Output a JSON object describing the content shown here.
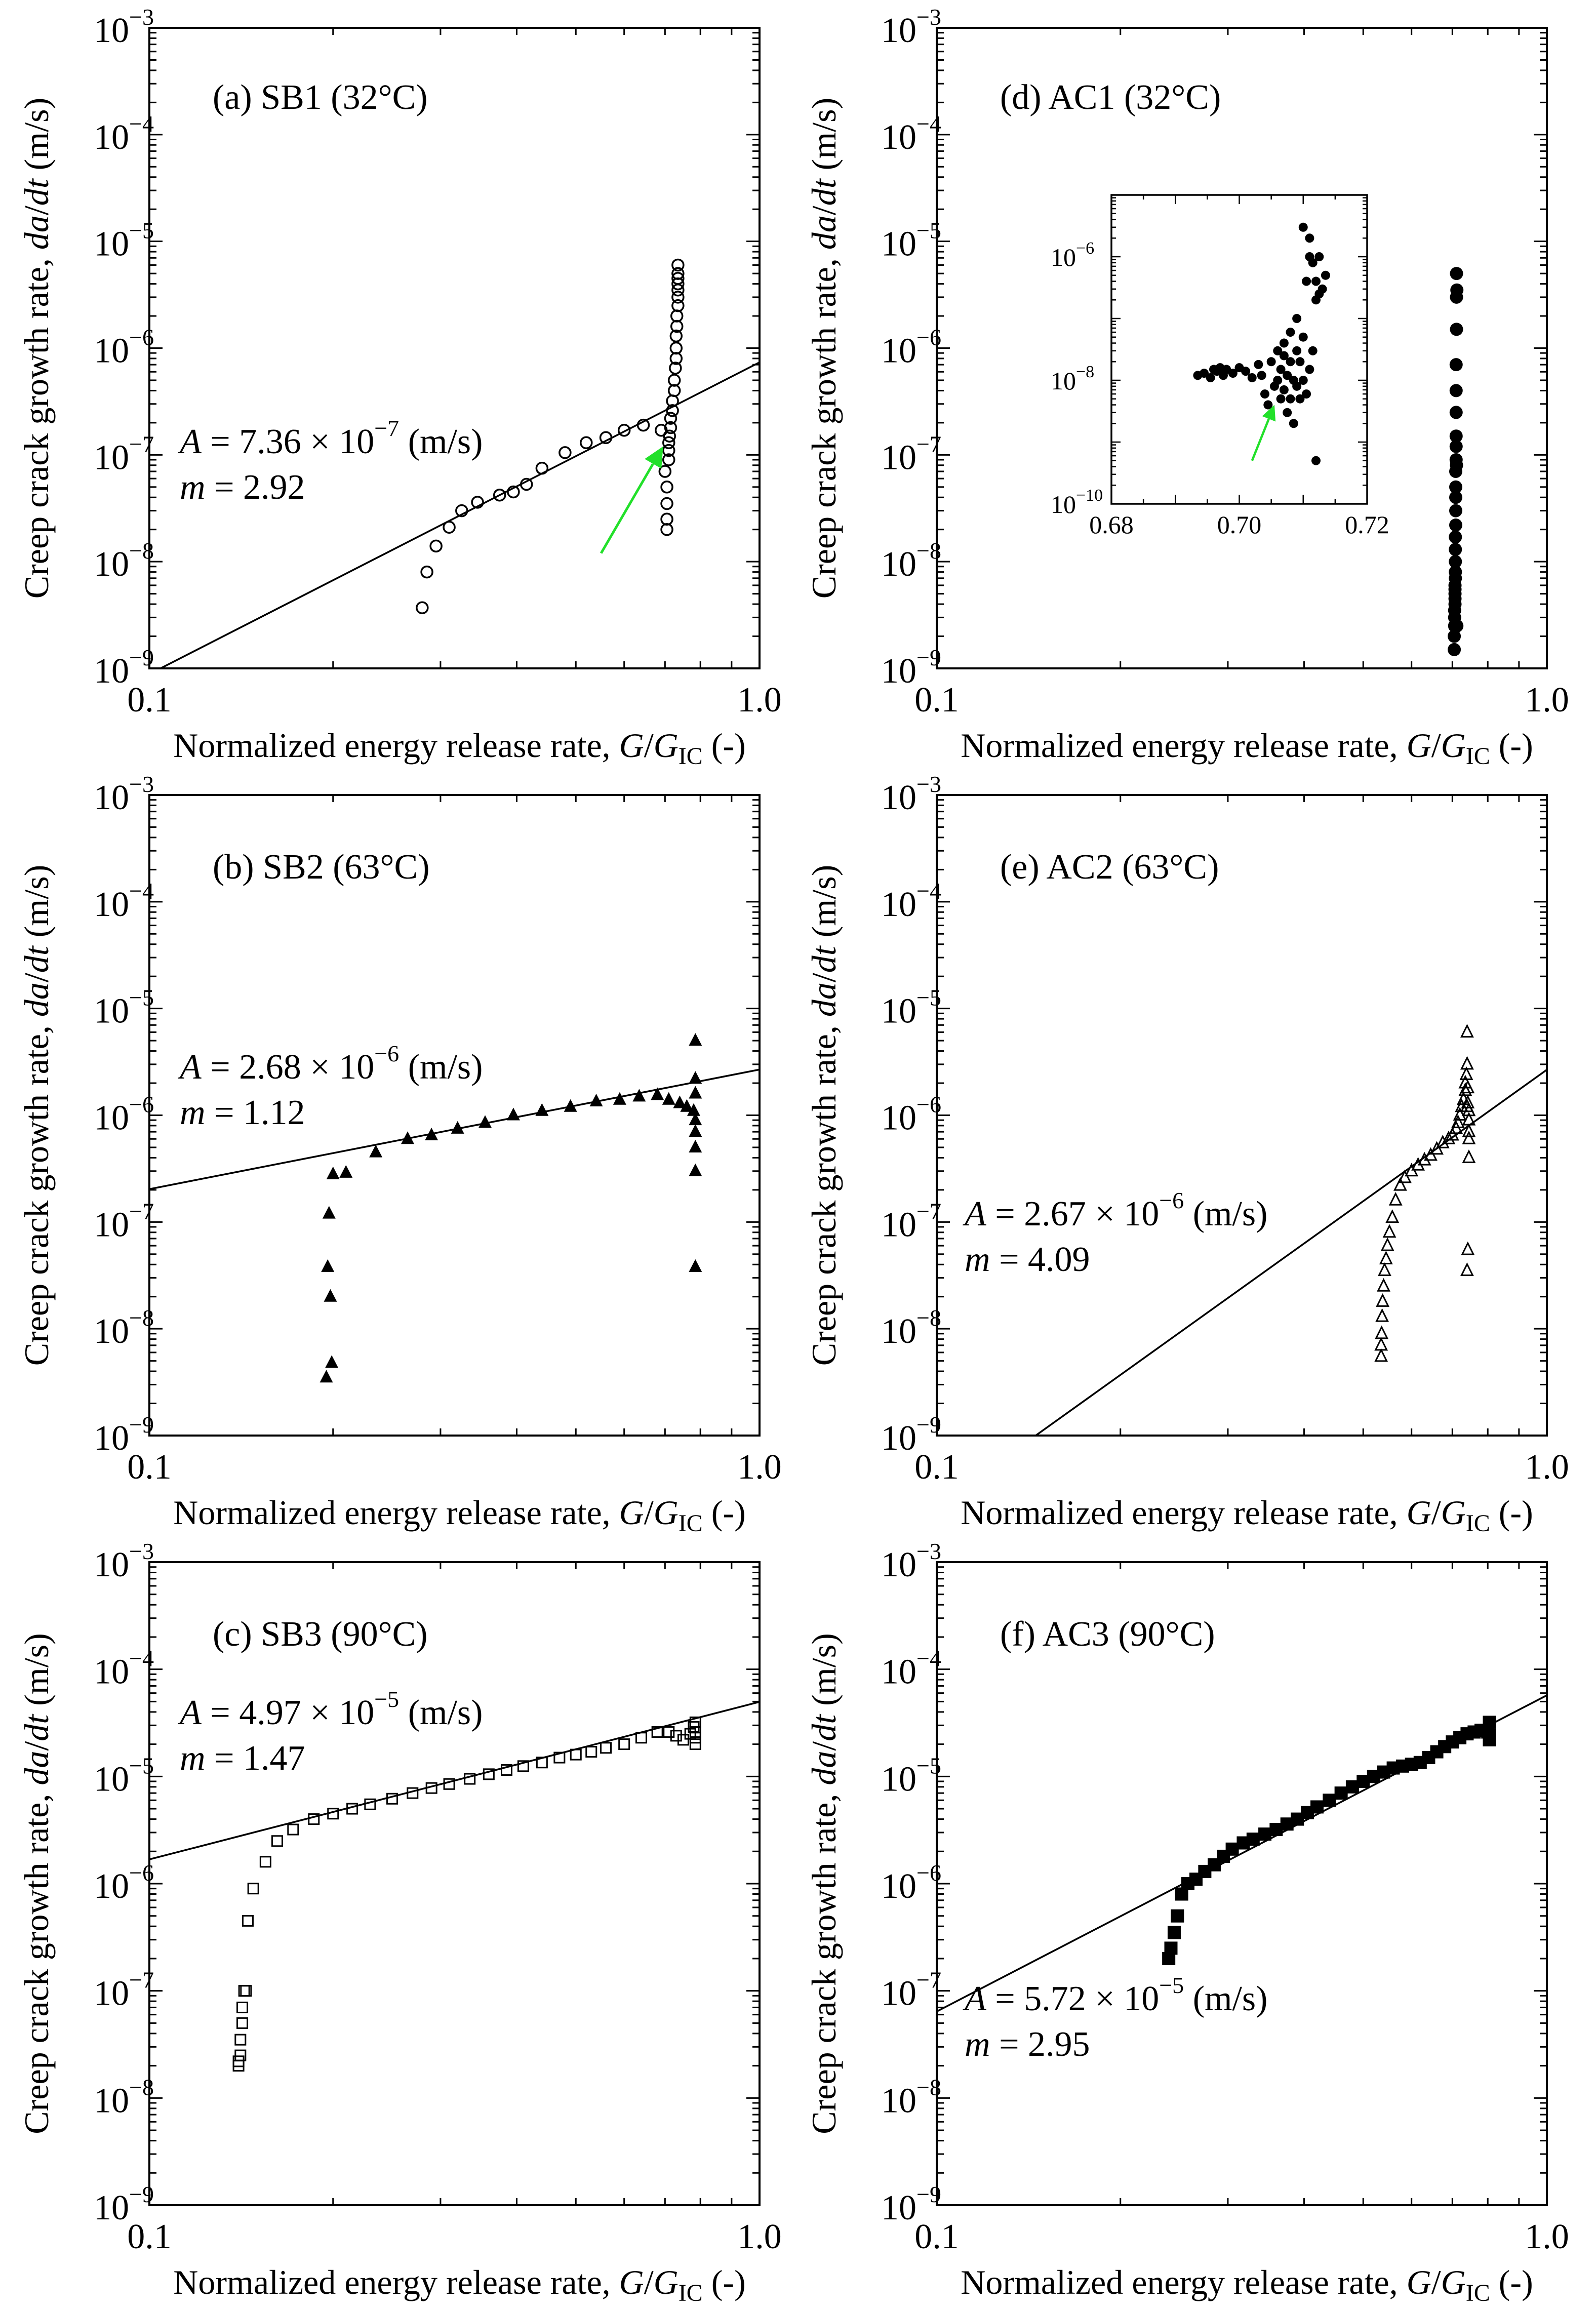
{
  "figure": {
    "x_label_parts": [
      "Normalized energy release rate, ",
      "G",
      "/",
      "G",
      "IC",
      " (-)"
    ],
    "y_label_parts": [
      "Creep crack growth rate, ",
      "da",
      "/",
      "dt",
      " (m/s)"
    ]
  },
  "chart_data": [
    {
      "id": "a",
      "type": "scatter",
      "title": "(a) SB1 (32°C)",
      "x_scale": "log",
      "y_scale": "log",
      "xlim": [
        0.1,
        1.0
      ],
      "ylim": [
        1e-09,
        0.001
      ],
      "x_ticks": [
        "0.1",
        "1.0"
      ],
      "y_ticks": [
        {
          "base": "10",
          "exp": "−9"
        },
        {
          "base": "10",
          "exp": "−8"
        },
        {
          "base": "10",
          "exp": "−7"
        },
        {
          "base": "10",
          "exp": "−6"
        },
        {
          "base": "10",
          "exp": "−5"
        },
        {
          "base": "10",
          "exp": "−4"
        },
        {
          "base": "10",
          "exp": "−3"
        }
      ],
      "marker": "open-circle",
      "fit": {
        "A": 7.36e-07,
        "m": 2.92
      },
      "annotation": {
        "A_prefix": "A",
        "A_mantissa": " = 7.36 × 10",
        "A_exp": "−7",
        "A_unit": " (m/s)",
        "m_prefix": "m",
        "m_text": " = 2.92"
      },
      "arrow": {
        "from": [
          0.55,
          1.2e-08
        ],
        "to": [
          0.695,
          1.2e-07
        ],
        "color": "#22e02a"
      },
      "points": {
        "x": [
          0.28,
          0.285,
          0.295,
          0.31,
          0.325,
          0.345,
          0.375,
          0.395,
          0.415,
          0.44,
          0.48,
          0.52,
          0.56,
          0.6,
          0.645,
          0.69,
          0.7,
          0.705,
          0.705,
          0.705,
          0.705,
          0.71,
          0.71,
          0.71,
          0.712,
          0.715,
          0.715,
          0.72,
          0.72,
          0.725,
          0.725,
          0.728,
          0.73,
          0.73,
          0.73,
          0.732,
          0.732,
          0.735,
          0.735,
          0.735,
          0.735,
          0.735,
          0.735,
          0.735
        ],
        "y": [
          3.7e-09,
          8e-09,
          1.4e-08,
          2.1e-08,
          3e-08,
          3.6e-08,
          4.2e-08,
          4.5e-08,
          5.3e-08,
          7.5e-08,
          1.05e-07,
          1.3e-07,
          1.45e-07,
          1.7e-07,
          1.9e-07,
          1.7e-07,
          7e-08,
          5e-08,
          3.5e-08,
          2.5e-08,
          2e-08,
          9e-08,
          1.1e-07,
          1.3e-07,
          1.5e-07,
          1.8e-07,
          2.2e-07,
          2.6e-07,
          3.2e-07,
          4e-07,
          5e-07,
          6.5e-07,
          8e-07,
          1e-06,
          1.3e-06,
          1.6e-06,
          2e-06,
          2.5e-06,
          3e-06,
          3.5e-06,
          4e-06,
          4.5e-06,
          5e-06,
          6e-06
        ]
      }
    },
    {
      "id": "b",
      "type": "scatter",
      "title": "(b) SB2 (63°C)",
      "x_scale": "log",
      "y_scale": "log",
      "xlim": [
        0.1,
        1.0
      ],
      "ylim": [
        1e-09,
        0.001
      ],
      "x_ticks": [
        "0.1",
        "1.0"
      ],
      "y_ticks": [
        {
          "base": "10",
          "exp": "−9"
        },
        {
          "base": "10",
          "exp": "−8"
        },
        {
          "base": "10",
          "exp": "−7"
        },
        {
          "base": "10",
          "exp": "−6"
        },
        {
          "base": "10",
          "exp": "−5"
        },
        {
          "base": "10",
          "exp": "−4"
        },
        {
          "base": "10",
          "exp": "−3"
        }
      ],
      "marker": "filled-triangle",
      "fit": {
        "A": 2.68e-06,
        "m": 1.12
      },
      "annotation": {
        "A_prefix": "A",
        "A_mantissa": " = 2.68 × 10",
        "A_exp": "−6",
        "A_unit": " (m/s)",
        "m_prefix": "m",
        "m_text": " = 1.12"
      },
      "points": {
        "x": [
          0.195,
          0.196,
          0.197,
          0.198,
          0.199,
          0.2,
          0.2,
          0.21,
          0.235,
          0.265,
          0.29,
          0.32,
          0.355,
          0.395,
          0.44,
          0.49,
          0.54,
          0.59,
          0.635,
          0.68,
          0.71,
          0.74,
          0.76,
          0.78,
          0.785,
          0.785,
          0.785,
          0.785,
          0.785,
          0.785,
          0.785,
          0.785
        ],
        "y": [
          3.5e-09,
          3.8e-08,
          1.2e-07,
          2e-08,
          4.8e-09,
          2.8e-07,
          2.8e-07,
          2.9e-07,
          4.5e-07,
          6e-07,
          6.5e-07,
          7.5e-07,
          8.5e-07,
          1e-06,
          1.1e-06,
          1.2e-06,
          1.35e-06,
          1.4e-06,
          1.5e-06,
          1.55e-06,
          1.4e-06,
          1.3e-06,
          1.2e-06,
          1.1e-06,
          5e-06,
          2.2e-06,
          1.6e-06,
          9e-07,
          7e-07,
          5e-07,
          3e-07,
          3.8e-08
        ]
      }
    },
    {
      "id": "c",
      "type": "scatter",
      "title": "(c) SB3 (90°C)",
      "x_scale": "log",
      "y_scale": "log",
      "xlim": [
        0.1,
        1.0
      ],
      "ylim": [
        1e-09,
        0.001
      ],
      "x_ticks": [
        "0.1",
        "1.0"
      ],
      "y_ticks": [
        {
          "base": "10",
          "exp": "−9"
        },
        {
          "base": "10",
          "exp": "−8"
        },
        {
          "base": "10",
          "exp": "−7"
        },
        {
          "base": "10",
          "exp": "−6"
        },
        {
          "base": "10",
          "exp": "−5"
        },
        {
          "base": "10",
          "exp": "−4"
        },
        {
          "base": "10",
          "exp": "−3"
        }
      ],
      "marker": "open-square",
      "fit": {
        "A": 4.97e-05,
        "m": 1.47
      },
      "annotation": {
        "A_prefix": "A",
        "A_mantissa": " = 4.97 × 10",
        "A_exp": "−5",
        "A_unit": " (m/s)",
        "m_prefix": "m",
        "m_text": " = 1.47"
      },
      "points": {
        "x": [
          0.14,
          0.14,
          0.141,
          0.141,
          0.142,
          0.142,
          0.143,
          0.144,
          0.145,
          0.148,
          0.155,
          0.162,
          0.172,
          0.186,
          0.2,
          0.215,
          0.23,
          0.25,
          0.27,
          0.29,
          0.31,
          0.335,
          0.36,
          0.385,
          0.41,
          0.44,
          0.47,
          0.5,
          0.53,
          0.56,
          0.6,
          0.64,
          0.68,
          0.71,
          0.73,
          0.75,
          0.77,
          0.78,
          0.785,
          0.785,
          0.785,
          0.785
        ],
        "y": [
          2e-08,
          2.2e-08,
          2.5e-08,
          3.5e-08,
          5e-08,
          7e-08,
          1e-07,
          1e-07,
          4.5e-07,
          9e-07,
          1.6e-06,
          2.5e-06,
          3.2e-06,
          4e-06,
          4.5e-06,
          5e-06,
          5.5e-06,
          6.2e-06,
          7e-06,
          7.8e-06,
          8.5e-06,
          9.5e-06,
          1.05e-05,
          1.15e-05,
          1.25e-05,
          1.35e-05,
          1.5e-05,
          1.6e-05,
          1.7e-05,
          1.85e-05,
          2e-05,
          2.3e-05,
          2.6e-05,
          2.6e-05,
          2.4e-05,
          2.2e-05,
          2.5e-05,
          2.9e-05,
          3.2e-05,
          2.6e-05,
          2.3e-05,
          2e-05
        ]
      }
    },
    {
      "id": "d",
      "type": "scatter",
      "title": "(d) AC1 (32°C)",
      "x_scale": "log",
      "y_scale": "log",
      "xlim": [
        0.1,
        1.0
      ],
      "ylim": [
        1e-09,
        0.001
      ],
      "x_ticks": [
        "0.1",
        "1.0"
      ],
      "y_ticks": [
        {
          "base": "10",
          "exp": "−9"
        },
        {
          "base": "10",
          "exp": "−8"
        },
        {
          "base": "10",
          "exp": "−7"
        },
        {
          "base": "10",
          "exp": "−6"
        },
        {
          "base": "10",
          "exp": "−5"
        },
        {
          "base": "10",
          "exp": "−4"
        },
        {
          "base": "10",
          "exp": "−3"
        }
      ],
      "marker": "filled-circle",
      "points": {
        "x": [
          0.705,
          0.705,
          0.706,
          0.706,
          0.706,
          0.707,
          0.707,
          0.707,
          0.707,
          0.707,
          0.708,
          0.708,
          0.708,
          0.708,
          0.708,
          0.709,
          0.709,
          0.709,
          0.709,
          0.709,
          0.71,
          0.71,
          0.71,
          0.71,
          0.71,
          0.71,
          0.711,
          0.711,
          0.711,
          0.711,
          0.712,
          0.712
        ],
        "y": [
          1.5e-09,
          2e-09,
          2.5e-09,
          3e-09,
          3.5e-09,
          4e-09,
          4.5e-09,
          5e-09,
          5.5e-09,
          6e-09,
          7e-09,
          8e-09,
          1e-08,
          1.3e-08,
          1.7e-08,
          2.2e-08,
          3e-08,
          4e-08,
          5e-08,
          7e-08,
          9e-08,
          1.2e-07,
          1.5e-07,
          2.5e-07,
          4e-07,
          7e-07,
          1.5e-06,
          3e-06,
          5e-06,
          8e-08,
          2.5e-09,
          3.5e-06
        ]
      },
      "inset": {
        "xlim": [
          0.68,
          0.72
        ],
        "ylim": [
          1e-10,
          1e-05
        ],
        "x_scale": "linear",
        "y_scale": "log",
        "x_ticks": [
          "0.68",
          "0.70",
          "0.72"
        ],
        "y_ticks": [
          {
            "base": "10",
            "exp": "−10"
          },
          {
            "base": "10",
            "exp": "−8"
          },
          {
            "base": "10",
            "exp": "−6"
          }
        ],
        "arrow": {
          "from": [
            0.702,
            5e-10
          ],
          "to": [
            0.7055,
            4e-09
          ],
          "color": "#22e02a"
        },
        "points": {
          "x": [
            0.6935,
            0.6945,
            0.6955,
            0.696,
            0.6965,
            0.697,
            0.6975,
            0.698,
            0.699,
            0.7,
            0.701,
            0.702,
            0.703,
            0.7035,
            0.704,
            0.7045,
            0.705,
            0.7055,
            0.706,
            0.706,
            0.7065,
            0.7065,
            0.707,
            0.707,
            0.707,
            0.7075,
            0.7075,
            0.708,
            0.708,
            0.708,
            0.7085,
            0.7085,
            0.709,
            0.709,
            0.709,
            0.7095,
            0.7095,
            0.71,
            0.71,
            0.71,
            0.7105,
            0.7105,
            0.711,
            0.711,
            0.711,
            0.7115,
            0.7115,
            0.712,
            0.712,
            0.7125,
            0.7125,
            0.713,
            0.7135,
            0.712
          ],
          "y": [
            1.2e-08,
            1.3e-08,
            1.1e-08,
            1.5e-08,
            1.4e-08,
            1.6e-08,
            1.2e-08,
            1.5e-08,
            1.3e-08,
            1.6e-08,
            1.4e-08,
            1.1e-08,
            1.8e-08,
            1.2e-08,
            6e-09,
            4e-09,
            2e-08,
            8e-09,
            1e-08,
            3e-08,
            5e-09,
            1.5e-08,
            7e-09,
            2.5e-08,
            4e-08,
            3e-09,
            1.2e-08,
            5e-09,
            2e-08,
            6e-08,
            2e-09,
            1e-08,
            8e-09,
            3e-08,
            1e-07,
            5e-09,
            2e-08,
            1e-08,
            5e-08,
            3e-06,
            6e-09,
            4e-07,
            1.5e-08,
            1e-06,
            2e-06,
            3e-08,
            8e-07,
            2e-07,
            4e-07,
            1e-06,
            2.5e-07,
            3e-07,
            5e-07,
            5e-10
          ]
        }
      }
    },
    {
      "id": "e",
      "type": "scatter",
      "title": "(e) AC2 (63°C)",
      "x_scale": "log",
      "y_scale": "log",
      "xlim": [
        0.1,
        1.0
      ],
      "ylim": [
        1e-09,
        0.001
      ],
      "x_ticks": [
        "0.1",
        "1.0"
      ],
      "y_ticks": [
        {
          "base": "10",
          "exp": "−9"
        },
        {
          "base": "10",
          "exp": "−8"
        },
        {
          "base": "10",
          "exp": "−7"
        },
        {
          "base": "10",
          "exp": "−6"
        },
        {
          "base": "10",
          "exp": "−5"
        },
        {
          "base": "10",
          "exp": "−4"
        },
        {
          "base": "10",
          "exp": "−3"
        }
      ],
      "marker": "open-triangle",
      "fit": {
        "A": 2.67e-06,
        "m": 4.09
      },
      "annotation": {
        "A_prefix": "A",
        "A_mantissa": " = 2.67 × 10",
        "A_exp": "−6",
        "A_unit": " (m/s)",
        "m_prefix": "m",
        "m_text": " = 4.09"
      },
      "points": {
        "x": [
          0.535,
          0.535,
          0.536,
          0.537,
          0.538,
          0.54,
          0.542,
          0.545,
          0.548,
          0.552,
          0.558,
          0.565,
          0.575,
          0.585,
          0.6,
          0.615,
          0.63,
          0.645,
          0.66,
          0.675,
          0.69,
          0.7,
          0.71,
          0.715,
          0.72,
          0.725,
          0.73,
          0.735,
          0.735,
          0.738,
          0.74,
          0.74,
          0.742,
          0.742,
          0.745,
          0.745,
          0.745,
          0.745,
          0.745,
          0.74,
          0.742,
          0.74
        ],
        "y": [
          5.5e-09,
          7e-09,
          9e-09,
          1.3e-08,
          1.8e-08,
          2.5e-08,
          3.5e-08,
          4.5e-08,
          6e-08,
          8e-08,
          1.1e-07,
          1.6e-07,
          2.2e-07,
          2.6e-07,
          3e-07,
          3.4e-07,
          3.8e-07,
          4.2e-07,
          4.8e-07,
          5.5e-07,
          6e-07,
          6.5e-07,
          7.5e-07,
          8.5e-07,
          1e-06,
          1.2e-06,
          1.4e-06,
          1.7e-06,
          2e-06,
          2.4e-06,
          3e-06,
          6e-06,
          1.8e-06,
          1.3e-06,
          1.1e-06,
          9e-07,
          7e-07,
          6e-07,
          4e-07,
          3.5e-08,
          5.5e-08,
          1.2e-06
        ]
      }
    },
    {
      "id": "f",
      "type": "scatter",
      "title": "(f) AC3 (90°C)",
      "x_scale": "log",
      "y_scale": "log",
      "xlim": [
        0.1,
        1.0
      ],
      "ylim": [
        1e-09,
        0.001
      ],
      "x_ticks": [
        "0.1",
        "1.0"
      ],
      "y_ticks": [
        {
          "base": "10",
          "exp": "−9"
        },
        {
          "base": "10",
          "exp": "−8"
        },
        {
          "base": "10",
          "exp": "−7"
        },
        {
          "base": "10",
          "exp": "−6"
        },
        {
          "base": "10",
          "exp": "−5"
        },
        {
          "base": "10",
          "exp": "−4"
        },
        {
          "base": "10",
          "exp": "−3"
        }
      ],
      "marker": "filled-square",
      "fit": {
        "A": 5.72e-05,
        "m": 2.95
      },
      "annotation": {
        "A_prefix": "A",
        "A_mantissa": " = 5.72 × 10",
        "A_exp": "−5",
        "A_unit": " (m/s)",
        "m_prefix": "m",
        "m_text": " = 2.95"
      },
      "points": {
        "x": [
          0.24,
          0.242,
          0.245,
          0.248,
          0.252,
          0.258,
          0.266,
          0.275,
          0.285,
          0.295,
          0.305,
          0.318,
          0.33,
          0.345,
          0.36,
          0.375,
          0.39,
          0.405,
          0.42,
          0.44,
          0.46,
          0.48,
          0.5,
          0.52,
          0.54,
          0.56,
          0.58,
          0.6,
          0.62,
          0.64,
          0.66,
          0.68,
          0.7,
          0.72,
          0.74,
          0.76,
          0.78,
          0.8,
          0.805,
          0.805,
          0.805
        ],
        "y": [
          2e-07,
          2.5e-07,
          3.5e-07,
          5e-07,
          8e-07,
          1e-06,
          1.1e-06,
          1.3e-06,
          1.5e-06,
          1.8e-06,
          2.1e-06,
          2.4e-06,
          2.6e-06,
          2.9e-06,
          3.2e-06,
          3.6e-06,
          4e-06,
          4.6e-06,
          5.2e-06,
          6e-06,
          7e-06,
          8e-06,
          9e-06,
          1e-05,
          1.1e-05,
          1.2e-05,
          1.25e-05,
          1.3e-05,
          1.35e-05,
          1.5e-05,
          1.7e-05,
          1.9e-05,
          2.1e-05,
          2.3e-05,
          2.5e-05,
          2.6e-05,
          2.7e-05,
          2.6e-05,
          3.2e-05,
          2.4e-05,
          2.2e-05
        ]
      }
    }
  ]
}
